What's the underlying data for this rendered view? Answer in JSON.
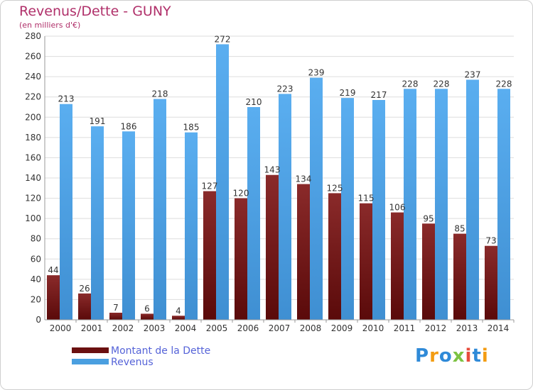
{
  "title": "Revenus/Dette - GUNY",
  "subtitle": "(en milliers d'€)",
  "colors": {
    "debt": "#7a1a1a",
    "revenue": "#4a9fe0",
    "title": "#b0306a",
    "legend_text": "#5563d8"
  },
  "legend": [
    {
      "label": "Montant de la Dette",
      "color": "#6b1010"
    },
    {
      "label": "Revenus",
      "color": "#4a9fe0"
    }
  ],
  "logo": {
    "letters": [
      "P",
      "r",
      "o",
      "x",
      "i",
      "t",
      "i"
    ],
    "colors": [
      "#2f8ad8",
      "#f39c12",
      "#2f8ad8",
      "#7cc242",
      "#e74c3c",
      "#2f8ad8",
      "#f39c12"
    ]
  },
  "chart_data": {
    "type": "bar",
    "title": "Revenus/Dette - GUNY",
    "subtitle": "(en milliers d'€)",
    "xlabel": "",
    "ylabel": "",
    "ylim": [
      0,
      280
    ],
    "yticks": [
      0,
      20,
      40,
      60,
      80,
      100,
      120,
      140,
      160,
      180,
      200,
      220,
      240,
      260,
      280
    ],
    "grid": true,
    "legend_position": "bottom-left",
    "categories": [
      "2000",
      "2001",
      "2002",
      "2003",
      "2004",
      "2005",
      "2006",
      "2007",
      "2008",
      "2009",
      "2010",
      "2011",
      "2012",
      "2013",
      "2014"
    ],
    "series": [
      {
        "name": "Montant de la Dette",
        "values": [
          44,
          26,
          7,
          6,
          4,
          127,
          120,
          143,
          134,
          125,
          115,
          106,
          95,
          85,
          73
        ]
      },
      {
        "name": "Revenus",
        "values": [
          213,
          191,
          186,
          218,
          185,
          272,
          210,
          223,
          239,
          219,
          217,
          228,
          228,
          237,
          228
        ]
      }
    ]
  }
}
